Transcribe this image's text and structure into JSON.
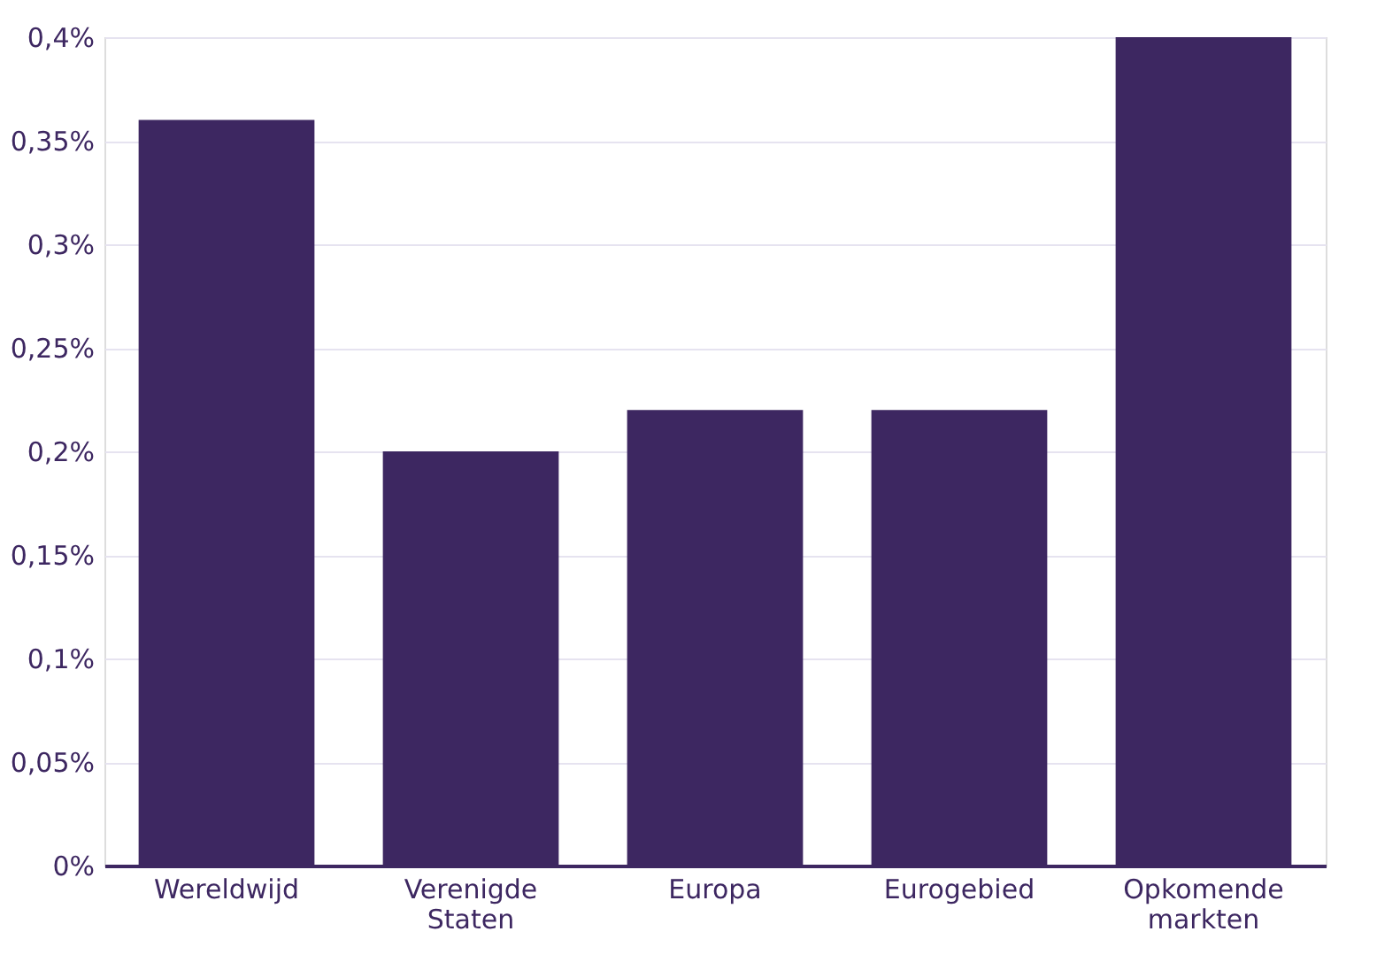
{
  "chart_data": {
    "type": "bar",
    "categories": [
      "Wereldwijd",
      "Verenigde Staten",
      "Europa",
      "Eurogebied",
      "Opkomende markten"
    ],
    "values": [
      0.36,
      0.2,
      0.22,
      0.22,
      0.4
    ],
    "color": "#3d2761",
    "ylim": [
      0,
      0.4
    ],
    "yticks": [
      {
        "value": 0,
        "label": "0%"
      },
      {
        "value": 0.05,
        "label": "0,05%"
      },
      {
        "value": 0.1,
        "label": "0,1%"
      },
      {
        "value": 0.15,
        "label": "0,15%"
      },
      {
        "value": 0.2,
        "label": "0,2%"
      },
      {
        "value": 0.25,
        "label": "0,25%"
      },
      {
        "value": 0.3,
        "label": "0,3%"
      },
      {
        "value": 0.35,
        "label": "0,35%"
      },
      {
        "value": 0.4,
        "label": "0,4%"
      }
    ],
    "grid": "y"
  }
}
